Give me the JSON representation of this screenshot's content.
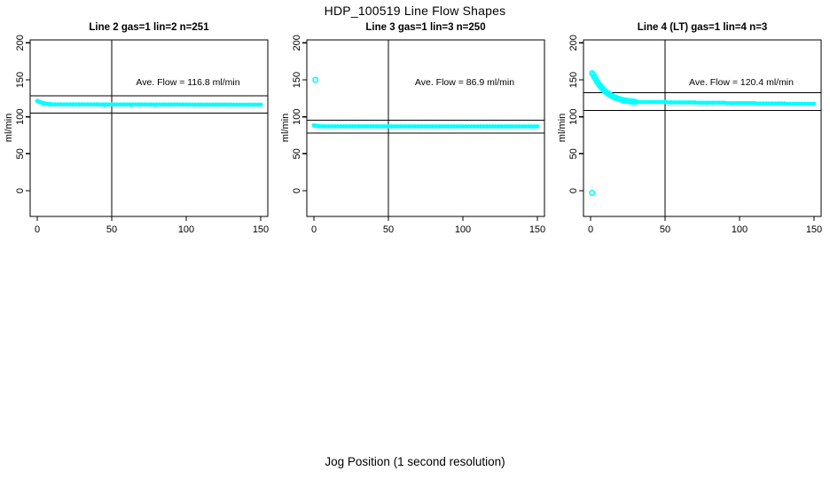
{
  "page": {
    "title": "HDP_100519  Line Flow Shapes",
    "outer_xlabel": "Jog Position (1 second resolution)",
    "background": "#ffffff",
    "point_color": "#00FFFF",
    "line_color": "#000000"
  },
  "chart_data": [
    {
      "type": "scatter",
      "title": "Line 2 gas=1 lin=2 n=251",
      "annotation": "Ave. Flow =  116.8  ml/min",
      "ave_flow_ml_min": 116.8,
      "n": 251,
      "ylabel": "ml/min",
      "xticks": [
        0,
        50,
        100,
        150
      ],
      "yticks": [
        0,
        50,
        100,
        150,
        200
      ],
      "xlim": [
        -5,
        155
      ],
      "ylim": [
        -35,
        205
      ],
      "vline_x": 50,
      "hlines": [
        128.5,
        105.1
      ],
      "band_points": [
        [
          0,
          121.4
        ],
        [
          0.6,
          121
        ],
        [
          1.2,
          120.4
        ],
        [
          1.8,
          119.9
        ],
        [
          2.4,
          119.4
        ],
        [
          3,
          119
        ],
        [
          3.6,
          118.6
        ],
        [
          4.2,
          118.3
        ],
        [
          4.8,
          118
        ],
        [
          5.4,
          117.8
        ],
        [
          6,
          117.6
        ],
        [
          7,
          117.3
        ],
        [
          8,
          117.1
        ],
        [
          9,
          116.9
        ],
        [
          10,
          116.8
        ],
        [
          12,
          116.8
        ],
        [
          14,
          116.8
        ],
        [
          16,
          116.8
        ],
        [
          18,
          116.8
        ],
        [
          20,
          116.8
        ],
        [
          22,
          116.8
        ],
        [
          24,
          116.8
        ],
        [
          26,
          116.8
        ],
        [
          28,
          116.8
        ],
        [
          30,
          116.8
        ],
        [
          32,
          116.8
        ],
        [
          34,
          116.8
        ],
        [
          36,
          116.8
        ],
        [
          38,
          116.8
        ],
        [
          40,
          116.8
        ],
        [
          42,
          116.7
        ],
        [
          44,
          116.7
        ],
        [
          46,
          116.7
        ],
        [
          48,
          116.7
        ],
        [
          50,
          116.7
        ],
        [
          52,
          116.7
        ],
        [
          54,
          116.7
        ],
        [
          56,
          116.7
        ],
        [
          58,
          116.7
        ],
        [
          60,
          116.7
        ],
        [
          62,
          116.7
        ],
        [
          64,
          116.7
        ],
        [
          66,
          116.7
        ],
        [
          68,
          116.7
        ],
        [
          70,
          116.7
        ],
        [
          72,
          116.6
        ],
        [
          74,
          116.6
        ],
        [
          76,
          116.6
        ],
        [
          78,
          116.6
        ],
        [
          80,
          116.6
        ],
        [
          82,
          116.6
        ],
        [
          84,
          116.6
        ],
        [
          86,
          116.6
        ],
        [
          88,
          116.6
        ],
        [
          90,
          116.6
        ],
        [
          92,
          116.6
        ],
        [
          94,
          116.6
        ],
        [
          96,
          116.6
        ],
        [
          98,
          116.6
        ],
        [
          100,
          116.6
        ],
        [
          102,
          116.5
        ],
        [
          104,
          116.5
        ],
        [
          106,
          116.5
        ],
        [
          108,
          116.5
        ],
        [
          110,
          116.5
        ],
        [
          112,
          116.5
        ],
        [
          114,
          116.5
        ],
        [
          116,
          116.5
        ],
        [
          118,
          116.5
        ],
        [
          120,
          116.5
        ],
        [
          122,
          116.5
        ],
        [
          124,
          116.5
        ],
        [
          126,
          116.5
        ],
        [
          128,
          116.5
        ],
        [
          130,
          116.5
        ],
        [
          132,
          116.4
        ],
        [
          134,
          116.4
        ],
        [
          136,
          116.4
        ],
        [
          138,
          116.4
        ],
        [
          140,
          116.4
        ],
        [
          142,
          116.4
        ],
        [
          144,
          116.4
        ],
        [
          146,
          116.4
        ],
        [
          148,
          116.4
        ],
        [
          150,
          116.4
        ]
      ],
      "open_points": [],
      "stray_points": [
        [
          45,
          113.5
        ],
        [
          63,
          113.8
        ],
        [
          79,
          113.6
        ]
      ]
    },
    {
      "type": "scatter",
      "title": "Line 3 gas=1 lin=3 n=250",
      "annotation": "Ave. Flow =  86.9  ml/min",
      "ave_flow_ml_min": 86.9,
      "n": 250,
      "ylabel": "ml/min",
      "xticks": [
        0,
        50,
        100,
        150
      ],
      "yticks": [
        0,
        50,
        100,
        150,
        200
      ],
      "xlim": [
        -5,
        155
      ],
      "ylim": [
        -35,
        205
      ],
      "vline_x": 50,
      "hlines": [
        95.6,
        78.2
      ],
      "band_points": [
        [
          0,
          88.4
        ],
        [
          0.6,
          88
        ],
        [
          1.2,
          87.7
        ],
        [
          2,
          87.5
        ],
        [
          3,
          87.3
        ],
        [
          4,
          87.2
        ],
        [
          6,
          87.1
        ],
        [
          8,
          87.1
        ],
        [
          10,
          87.1
        ],
        [
          12,
          87.1
        ],
        [
          14,
          87.1
        ],
        [
          16,
          87.1
        ],
        [
          18,
          87.1
        ],
        [
          20,
          87.1
        ],
        [
          22,
          87.1
        ],
        [
          24,
          87.1
        ],
        [
          26,
          87.1
        ],
        [
          28,
          87.1
        ],
        [
          30,
          87.1
        ],
        [
          32,
          87.1
        ],
        [
          34,
          87.1
        ],
        [
          36,
          87.1
        ],
        [
          38,
          87.1
        ],
        [
          40,
          87.1
        ],
        [
          42,
          87.1
        ],
        [
          44,
          87.1
        ],
        [
          46,
          87.1
        ],
        [
          48,
          87.1
        ],
        [
          50,
          87.1
        ],
        [
          52,
          87
        ],
        [
          54,
          87
        ],
        [
          56,
          87
        ],
        [
          58,
          87
        ],
        [
          60,
          87
        ],
        [
          62,
          87
        ],
        [
          64,
          87
        ],
        [
          66,
          87
        ],
        [
          68,
          87
        ],
        [
          70,
          87
        ],
        [
          72,
          87
        ],
        [
          74,
          87
        ],
        [
          76,
          87
        ],
        [
          78,
          87
        ],
        [
          80,
          87
        ],
        [
          82,
          87
        ],
        [
          84,
          87
        ],
        [
          86,
          87
        ],
        [
          88,
          87
        ],
        [
          90,
          87
        ],
        [
          92,
          87
        ],
        [
          94,
          87
        ],
        [
          96,
          87
        ],
        [
          98,
          87
        ],
        [
          100,
          87
        ],
        [
          102,
          86.9
        ],
        [
          104,
          86.9
        ],
        [
          106,
          86.9
        ],
        [
          108,
          86.9
        ],
        [
          110,
          86.9
        ],
        [
          112,
          86.9
        ],
        [
          114,
          86.9
        ],
        [
          116,
          86.9
        ],
        [
          118,
          86.9
        ],
        [
          120,
          86.9
        ],
        [
          122,
          86.9
        ],
        [
          124,
          86.9
        ],
        [
          126,
          86.9
        ],
        [
          128,
          86.9
        ],
        [
          130,
          86.9
        ],
        [
          132,
          86.9
        ],
        [
          134,
          86.9
        ],
        [
          136,
          86.9
        ],
        [
          138,
          86.9
        ],
        [
          140,
          86.9
        ],
        [
          142,
          86.9
        ],
        [
          144,
          86.9
        ],
        [
          146,
          86.9
        ],
        [
          148,
          86.9
        ],
        [
          150,
          86.9
        ]
      ],
      "open_points": [
        [
          1,
          150
        ]
      ],
      "stray_points": []
    },
    {
      "type": "scatter",
      "title": "Line 4 (LT) gas=1 lin=4 n=3",
      "annotation": "Ave. Flow =  120.4  ml/min",
      "ave_flow_ml_min": 120.4,
      "n": 3,
      "ylabel": "ml/min",
      "xticks": [
        0,
        50,
        100,
        150
      ],
      "yticks": [
        0,
        50,
        100,
        150,
        200
      ],
      "xlim": [
        -5,
        155
      ],
      "ylim": [
        -35,
        205
      ],
      "vline_x": 50,
      "hlines": [
        132.4,
        108.4
      ],
      "band_points": [
        [
          30,
          120
        ],
        [
          32,
          120
        ],
        [
          34,
          120
        ],
        [
          36,
          120
        ],
        [
          38,
          120
        ],
        [
          40,
          120
        ],
        [
          42,
          120
        ],
        [
          44,
          120
        ],
        [
          46,
          120
        ],
        [
          48,
          120
        ],
        [
          50,
          120
        ],
        [
          52,
          119.5
        ],
        [
          54,
          119.5
        ],
        [
          56,
          119.5
        ],
        [
          58,
          119.5
        ],
        [
          60,
          119.5
        ],
        [
          62,
          119.5
        ],
        [
          64,
          119.5
        ],
        [
          66,
          119.5
        ],
        [
          68,
          119.5
        ],
        [
          70,
          119.5
        ],
        [
          72,
          119
        ],
        [
          74,
          119
        ],
        [
          76,
          119
        ],
        [
          78,
          119
        ],
        [
          80,
          119
        ],
        [
          82,
          119
        ],
        [
          84,
          119
        ],
        [
          86,
          119
        ],
        [
          88,
          119
        ],
        [
          90,
          119
        ],
        [
          92,
          118.5
        ],
        [
          94,
          118.5
        ],
        [
          96,
          118.5
        ],
        [
          98,
          118.5
        ],
        [
          100,
          118.5
        ],
        [
          102,
          118.5
        ],
        [
          104,
          118.5
        ],
        [
          106,
          118.5
        ],
        [
          108,
          118.5
        ],
        [
          110,
          118.5
        ],
        [
          112,
          118
        ],
        [
          114,
          118
        ],
        [
          116,
          118
        ],
        [
          118,
          118
        ],
        [
          120,
          118
        ],
        [
          122,
          118
        ],
        [
          124,
          118
        ],
        [
          126,
          118
        ],
        [
          128,
          118
        ],
        [
          130,
          118
        ],
        [
          132,
          117.5
        ],
        [
          134,
          117.5
        ],
        [
          136,
          117.5
        ],
        [
          138,
          117.5
        ],
        [
          140,
          117.5
        ],
        [
          142,
          117.5
        ],
        [
          144,
          117.5
        ],
        [
          146,
          117.5
        ],
        [
          148,
          117.5
        ],
        [
          150,
          117.5
        ]
      ],
      "open_points": [
        [
          1,
          -3
        ],
        [
          1,
          159
        ],
        [
          1.7,
          157
        ],
        [
          2.4,
          154.5
        ],
        [
          3.1,
          152
        ],
        [
          3.8,
          149.5
        ],
        [
          4.5,
          147.2
        ],
        [
          5.2,
          145
        ],
        [
          6,
          142.8
        ],
        [
          6.8,
          140.8
        ],
        [
          7.6,
          138.9
        ],
        [
          8.4,
          137.2
        ],
        [
          9.2,
          135.6
        ],
        [
          10,
          134.1
        ],
        [
          11,
          132.4
        ],
        [
          12,
          130.9
        ],
        [
          13,
          129.6
        ],
        [
          14,
          128.4
        ],
        [
          15,
          127.3
        ],
        [
          16,
          126.4
        ],
        [
          17,
          125.5
        ],
        [
          18,
          124.8
        ],
        [
          19,
          124.1
        ],
        [
          20,
          123.5
        ],
        [
          21,
          123
        ],
        [
          22,
          122.5
        ],
        [
          23,
          122.1
        ],
        [
          24,
          121.7
        ],
        [
          25,
          121.4
        ],
        [
          26,
          121.1
        ],
        [
          27,
          120.8
        ],
        [
          28,
          120.6
        ],
        [
          29,
          120.4
        ],
        [
          30,
          120.2
        ]
      ],
      "stray_points": []
    }
  ]
}
